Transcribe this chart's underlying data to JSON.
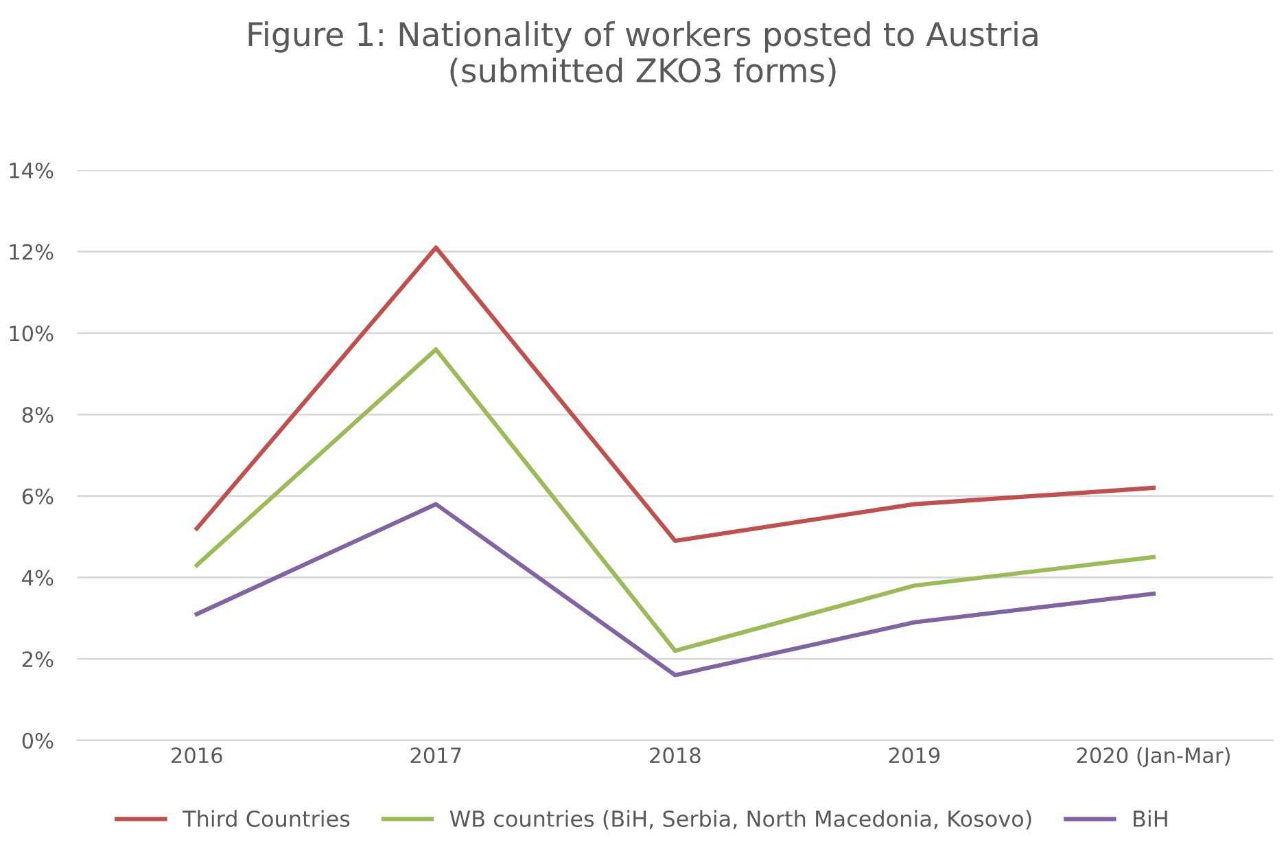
{
  "chart_data": {
    "type": "line",
    "title": "Figure 1: Nationality of workers posted to Austria\n(submitted ZKO3 forms)",
    "categories": [
      "2016",
      "2017",
      "2018",
      "2019",
      "2020 (Jan-Mar)"
    ],
    "series": [
      {
        "name": "Third Countries",
        "color": "#c0504d",
        "values": [
          5.2,
          12.1,
          4.9,
          5.8,
          6.2
        ]
      },
      {
        "name": "WB countries (BiH, Serbia, North Macedonia, Kosovo)",
        "color": "#9bbb59",
        "values": [
          4.3,
          9.6,
          2.2,
          3.8,
          4.5
        ]
      },
      {
        "name": "BiH",
        "color": "#8064a2",
        "values": [
          3.1,
          5.8,
          1.6,
          2.9,
          3.6
        ]
      }
    ],
    "ylim": [
      0,
      14
    ],
    "yticks": [
      {
        "value": 0,
        "label": "0%"
      },
      {
        "value": 2,
        "label": "2%"
      },
      {
        "value": 4,
        "label": "4%"
      },
      {
        "value": 6,
        "label": "6%"
      },
      {
        "value": 8,
        "label": "8%"
      },
      {
        "value": 10,
        "label": "10%"
      },
      {
        "value": 12,
        "label": "12%"
      },
      {
        "value": 14,
        "label": "14%"
      }
    ],
    "grid": "y",
    "legend": "bottom",
    "marker": "none",
    "line_style": "solid"
  }
}
